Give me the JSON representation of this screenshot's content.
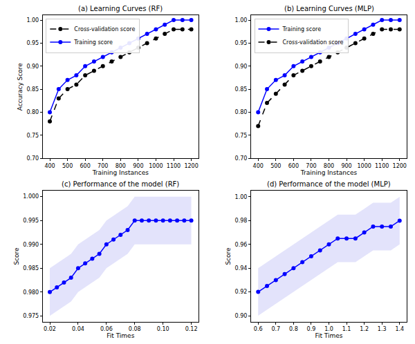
{
  "chart_data": [
    {
      "type": "line",
      "title": "(a) Learning Curves (RF)",
      "x_label": "Training Instances",
      "y_label": "Accuracy Score",
      "x": [
        400,
        450,
        500,
        550,
        600,
        650,
        700,
        750,
        800,
        850,
        900,
        950,
        1000,
        1050,
        1100,
        1150,
        1200
      ],
      "series": [
        {
          "name": "Training score",
          "color": "#0000ff",
          "marker": "circle",
          "line_style": "solid",
          "values": [
            0.8,
            0.85,
            0.87,
            0.88,
            0.9,
            0.91,
            0.92,
            0.93,
            0.94,
            0.95,
            0.96,
            0.97,
            0.98,
            0.99,
            1.0,
            1.0,
            1.0
          ]
        },
        {
          "name": "Cross-validation score",
          "color": "#000000",
          "marker": "circle",
          "line_style": "dashed",
          "values": [
            0.78,
            0.83,
            0.85,
            0.86,
            0.88,
            0.89,
            0.9,
            0.91,
            0.92,
            0.93,
            0.94,
            0.95,
            0.96,
            0.97,
            0.98,
            0.98,
            0.98
          ]
        }
      ],
      "xlim": [
        360,
        1240
      ],
      "xticks": [
        400,
        500,
        600,
        700,
        800,
        900,
        1000,
        1100,
        1200
      ],
      "ylim": [
        0.7,
        1.01
      ],
      "yticks": [
        {
          "value": 0.7,
          "label": "0.70"
        },
        0.75,
        {
          "value": 0.8,
          "label": "0.80"
        },
        0.85,
        {
          "value": 0.9,
          "label": "0.90"
        },
        0.95,
        {
          "value": 1,
          "label": "1.00"
        }
      ],
      "grid": false,
      "legend": "upper left"
    },
    {
      "type": "line",
      "title": "(b) Learning Curves (MLP)",
      "x_label": "Training Instances",
      "x": [
        400,
        450,
        500,
        550,
        600,
        650,
        700,
        750,
        800,
        850,
        900,
        950,
        1000,
        1050,
        1100,
        1150,
        1200
      ],
      "series": [
        {
          "name": "Training score",
          "color": "#0000ff",
          "marker": "circle",
          "line_style": "solid",
          "values": [
            0.8,
            0.85,
            0.87,
            0.88,
            0.9,
            0.91,
            0.92,
            0.93,
            0.94,
            0.95,
            0.96,
            0.97,
            0.98,
            0.99,
            1.0,
            1.0,
            1.0
          ]
        },
        {
          "name": "Cross-validation score",
          "color": "#000000",
          "marker": "circle",
          "line_style": "dashed",
          "values": [
            0.77,
            0.82,
            0.84,
            0.86,
            0.88,
            0.89,
            0.9,
            0.91,
            0.92,
            0.93,
            0.94,
            0.95,
            0.96,
            0.97,
            0.98,
            0.98,
            0.98
          ]
        }
      ],
      "xlim": [
        360,
        1240
      ],
      "xticks": [
        400,
        500,
        600,
        700,
        800,
        900,
        1000,
        1100,
        1200
      ],
      "ylim": [
        0.7,
        1.01
      ],
      "yticks": [
        {
          "value": 0.7,
          "label": "0.70"
        },
        0.75,
        {
          "value": 0.8,
          "label": "0.80"
        },
        0.85,
        {
          "value": 0.9,
          "label": "0.90"
        },
        0.95,
        {
          "value": 1,
          "label": "1.00"
        }
      ],
      "grid": false,
      "legend": "upper left"
    },
    {
      "type": "line",
      "title": "(c) Performance of the model (RF)",
      "x_label": "Fit Times",
      "y_label": "Score",
      "x": [
        0.02,
        0.025,
        0.03,
        0.035,
        0.04,
        0.045,
        0.05,
        0.055,
        0.06,
        0.065,
        0.07,
        0.075,
        0.08,
        0.085,
        0.09,
        0.095,
        0.1,
        0.105,
        0.11,
        0.115,
        0.12
      ],
      "series": [
        {
          "color": "#0000ff",
          "marker": "circle",
          "line_style": "solid",
          "values": [
            0.98,
            0.981,
            0.982,
            0.983,
            0.985,
            0.986,
            0.987,
            0.988,
            0.99,
            0.991,
            0.992,
            0.993,
            0.995,
            0.995,
            0.995,
            0.995,
            0.995,
            0.995,
            0.995,
            0.995,
            0.995
          ],
          "lower": [
            0.975,
            0.976,
            0.977,
            0.978,
            0.98,
            0.981,
            0.982,
            0.983,
            0.985,
            0.986,
            0.987,
            0.988,
            0.99,
            0.99,
            0.99,
            0.99,
            0.99,
            0.99,
            0.99,
            0.99,
            0.99
          ],
          "upper": [
            0.985,
            0.986,
            0.987,
            0.988,
            0.99,
            0.991,
            0.992,
            0.993,
            0.995,
            0.996,
            0.997,
            0.998,
            1.0,
            1.0,
            1.0,
            1.0,
            1.0,
            1.0,
            1.0,
            1.0,
            1.0
          ]
        }
      ],
      "xlim": [
        0.015,
        0.125
      ],
      "xticks": [
        0.02,
        0.04,
        0.06,
        0.08,
        {
          "value": 0.1,
          "label": "0.10"
        },
        0.12
      ],
      "ylim": [
        0.9738,
        1.0012
      ],
      "yticks": [
        0.975,
        {
          "value": 0.98,
          "label": "0.980"
        },
        0.985,
        {
          "value": 0.99,
          "label": "0.990"
        },
        0.995,
        {
          "value": 1,
          "label": "1.000"
        }
      ],
      "grid": false
    },
    {
      "type": "line",
      "title": "(d) Performance of the model (MLP)",
      "x_label": "Fit Times",
      "y_label": "Score",
      "x": [
        0.6,
        0.65,
        0.7,
        0.75,
        0.8,
        0.85,
        0.9,
        0.95,
        1.0,
        1.05,
        1.1,
        1.15,
        1.2,
        1.25,
        1.3,
        1.35,
        1.4
      ],
      "series": [
        {
          "color": "#0000ff",
          "marker": "circle",
          "line_style": "solid",
          "values": [
            0.92,
            0.925,
            0.93,
            0.935,
            0.94,
            0.945,
            0.95,
            0.955,
            0.96,
            0.965,
            0.965,
            0.965,
            0.97,
            0.975,
            0.975,
            0.975,
            0.98
          ],
          "lower": [
            0.9,
            0.905,
            0.91,
            0.915,
            0.92,
            0.925,
            0.93,
            0.935,
            0.94,
            0.945,
            0.945,
            0.945,
            0.95,
            0.955,
            0.955,
            0.955,
            0.96
          ],
          "upper": [
            0.94,
            0.945,
            0.95,
            0.955,
            0.96,
            0.965,
            0.97,
            0.975,
            0.98,
            0.985,
            0.985,
            0.985,
            0.99,
            0.995,
            0.995,
            0.995,
            1.0
          ]
        }
      ],
      "xlim": [
        0.56,
        1.44
      ],
      "xticks": [
        0.6,
        0.7,
        0.8,
        0.9,
        {
          "value": 1,
          "label": "1.0"
        },
        1.1,
        1.2,
        1.3,
        1.4
      ],
      "ylim": [
        0.895,
        1.005
      ],
      "yticks": [
        {
          "value": 0.9,
          "label": "0.90"
        },
        0.92,
        0.94,
        0.96,
        0.98,
        {
          "value": 1,
          "label": "1.00"
        }
      ],
      "grid": false
    }
  ]
}
